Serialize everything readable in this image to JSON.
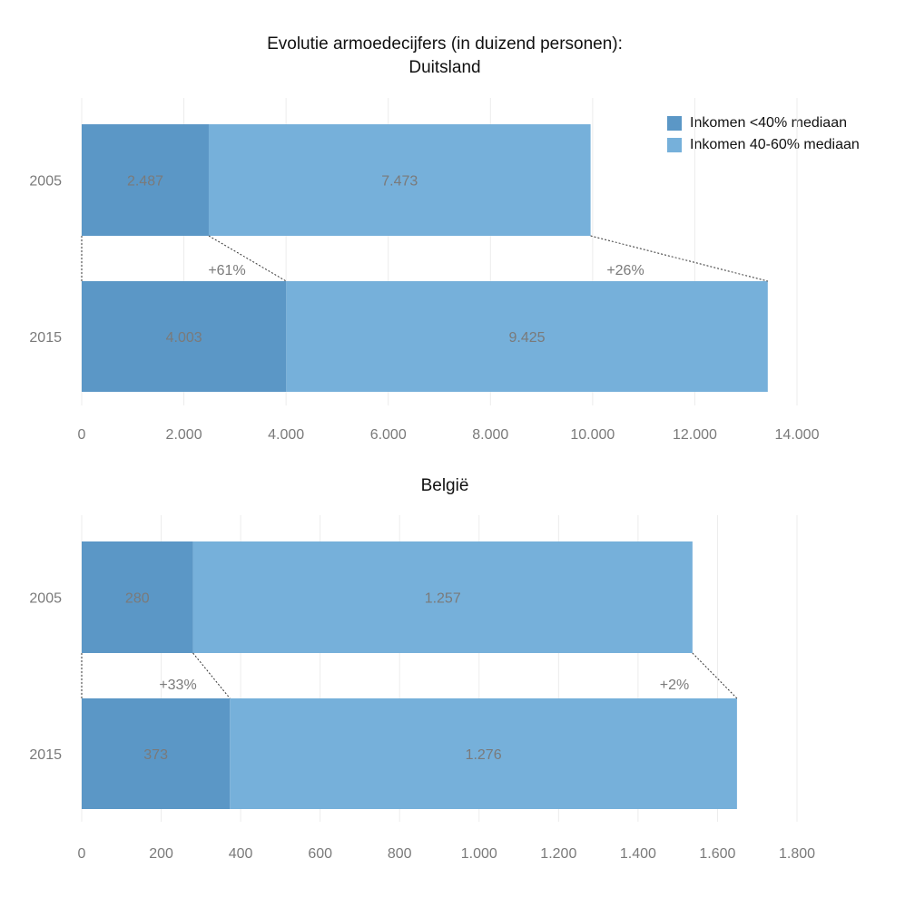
{
  "title_line1": "Evolutie armoedecijfers (in duizend personen):",
  "legend": [
    {
      "label": "Inkomen <40% mediaan",
      "color": "#5b97c6"
    },
    {
      "label": "Inkomen 40-60% mediaan",
      "color": "#76b0da"
    }
  ],
  "chart_data": [
    {
      "type": "bar",
      "orientation": "horizontal",
      "stacked": true,
      "title": "Duitsland",
      "categories": [
        "2005",
        "2015"
      ],
      "series": [
        {
          "name": "Inkomen <40% mediaan",
          "values": [
            2487,
            4003
          ],
          "labels": [
            "2.487",
            "4.003"
          ]
        },
        {
          "name": "Inkomen 40-60% mediaan",
          "values": [
            7473,
            9425
          ],
          "labels": [
            "7.473",
            "9.425"
          ]
        }
      ],
      "annotations": [
        "+61%",
        "+26%"
      ],
      "xlim": [
        0,
        14000
      ],
      "xticks": [
        0,
        2000,
        4000,
        6000,
        8000,
        10000,
        12000,
        14000
      ],
      "xtick_labels": [
        "0",
        "2.000",
        "4.000",
        "6.000",
        "8.000",
        "10.000",
        "12.000",
        "14.000"
      ],
      "grid": true
    },
    {
      "type": "bar",
      "orientation": "horizontal",
      "stacked": true,
      "title": "België",
      "categories": [
        "2005",
        "2015"
      ],
      "series": [
        {
          "name": "Inkomen <40% mediaan",
          "values": [
            280,
            373
          ],
          "labels": [
            "280",
            "373"
          ]
        },
        {
          "name": "Inkomen 40-60% mediaan",
          "values": [
            1257,
            1276
          ],
          "labels": [
            "1.257",
            "1.276"
          ]
        }
      ],
      "annotations": [
        "+33%",
        "+2%"
      ],
      "xlim": [
        0,
        1800
      ],
      "xticks": [
        0,
        200,
        400,
        600,
        800,
        1000,
        1200,
        1400,
        1600,
        1800
      ],
      "xtick_labels": [
        "0",
        "200",
        "400",
        "600",
        "800",
        "1.000",
        "1.200",
        "1.400",
        "1.600",
        "1.800"
      ],
      "grid": true
    }
  ]
}
